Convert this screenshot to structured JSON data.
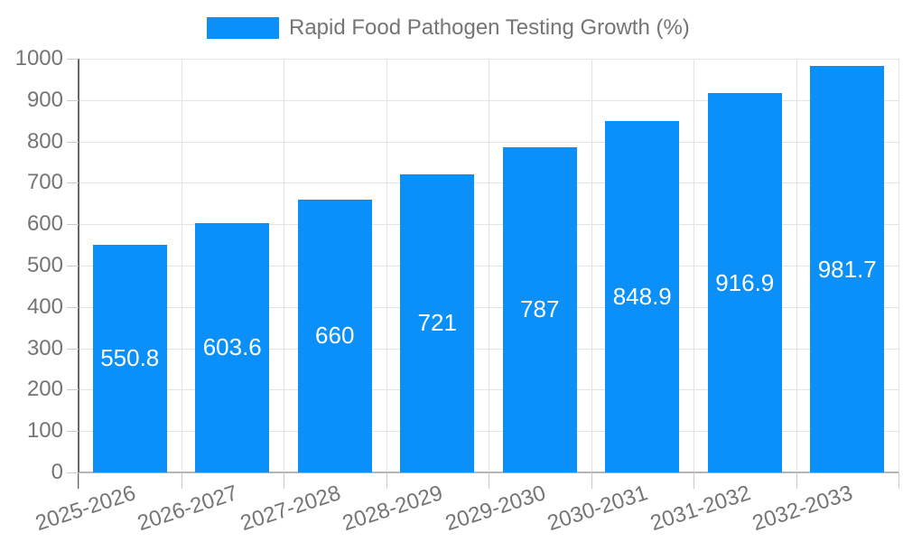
{
  "legend": {
    "label": "Rapid Food Pathogen Testing Growth (%)"
  },
  "chart_data": {
    "type": "bar",
    "title": "Rapid Food Pathogen Testing Growth (%)",
    "series_name": "Rapid Food Pathogen Testing Growth (%)",
    "categories": [
      "2025-2026",
      "2026-2027",
      "2027-2028",
      "2028-2029",
      "2029-2030",
      "2030-2031",
      "2031-2032",
      "2032-2033"
    ],
    "values": [
      550.8,
      603.6,
      660,
      721,
      787,
      848.9,
      916.9,
      981.7
    ],
    "bar_labels": [
      "550.8",
      "603.6",
      "660",
      "721",
      "787",
      "848.9",
      "916.9",
      "981.7"
    ],
    "xlabel": "",
    "ylabel": "",
    "ylim": [
      0,
      1000
    ],
    "yticks": [
      0,
      100,
      200,
      300,
      400,
      500,
      600,
      700,
      800,
      900,
      1000
    ],
    "grid": true,
    "legend_position": "top",
    "colors": {
      "bar": "#0a90f8",
      "bar_label": "#ffffff",
      "axis_text": "#757575",
      "grid": "#e3e3e3",
      "baseline": "#b5b5b5",
      "axis_line": "#666666",
      "tick": "#c9c9c9",
      "background": "#ffffff"
    }
  }
}
